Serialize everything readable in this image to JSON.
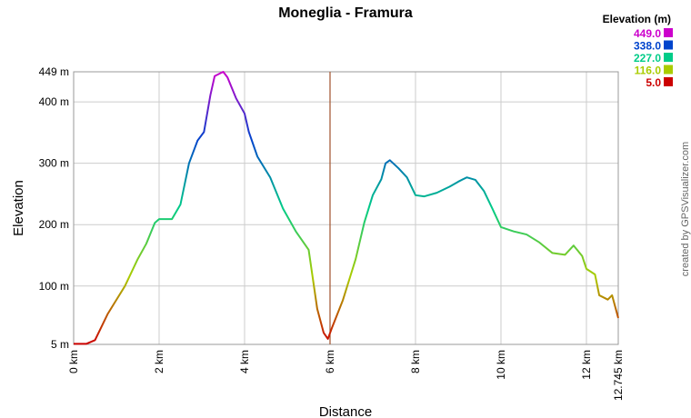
{
  "chart_data": {
    "type": "line",
    "title": "Moneglia - Framura",
    "x_label": "Distance",
    "y_label": "Elevation",
    "credit": "created by GPSVisualizer.com",
    "x": [
      0,
      0.3,
      0.5,
      0.8,
      1.2,
      1.5,
      1.7,
      1.9,
      2.0,
      2.3,
      2.5,
      2.7,
      2.9,
      3.05,
      3.2,
      3.3,
      3.5,
      3.6,
      3.8,
      4.0,
      4.1,
      4.3,
      4.6,
      4.9,
      5.2,
      5.5,
      5.7,
      5.85,
      5.95,
      6.05,
      6.3,
      6.6,
      6.8,
      7.0,
      7.2,
      7.3,
      7.4,
      7.6,
      7.8,
      8.0,
      8.2,
      8.5,
      8.8,
      9.0,
      9.2,
      9.4,
      9.6,
      9.8,
      10.0,
      10.3,
      10.6,
      10.9,
      11.2,
      11.5,
      11.7,
      11.9,
      12.0,
      12.2,
      12.3,
      12.5,
      12.6,
      12.745
    ],
    "values": [
      6,
      6,
      12,
      55,
      100,
      144,
      169,
      203,
      209,
      209,
      233,
      300,
      337,
      351,
      411,
      442,
      449,
      440,
      406,
      381,
      351,
      311,
      277,
      226,
      189,
      159,
      63,
      24,
      14,
      33,
      77,
      144,
      203,
      248,
      274,
      300,
      305,
      292,
      277,
      248,
      246,
      252,
      262,
      270,
      277,
      273,
      255,
      226,
      196,
      189,
      184,
      171,
      154,
      151,
      166,
      149,
      128,
      119,
      85,
      78,
      85,
      48
    ],
    "xlim": [
      0,
      12.745
    ],
    "xticks": [
      {
        "value": 0,
        "label": "0 km"
      },
      {
        "value": 2,
        "label": "2 km"
      },
      {
        "value": 4,
        "label": "4 km"
      },
      {
        "value": 6,
        "label": "6 km"
      },
      {
        "value": 8,
        "label": "8 km"
      },
      {
        "value": 10,
        "label": "10 km"
      },
      {
        "value": 12,
        "label": "12 km"
      },
      {
        "value": 12.745,
        "label": "12.745 km"
      }
    ],
    "ylim": [
      5,
      449
    ],
    "yticks": [
      {
        "value": 5,
        "label": "5 m"
      },
      {
        "value": 100,
        "label": "100 m"
      },
      {
        "value": 200,
        "label": "200 m"
      },
      {
        "value": 300,
        "label": "300 m"
      },
      {
        "value": 400,
        "label": "400 m"
      },
      {
        "value": 449,
        "label": "449 m"
      }
    ],
    "grid": true,
    "reference_lines": [
      {
        "x": 6.0,
        "color": "#a0522d"
      }
    ],
    "color_scale": {
      "title": "Elevation (m)",
      "stops": [
        {
          "value": 449,
          "label": "449.0",
          "color": "#cc00cc"
        },
        {
          "value": 338,
          "label": "338.0",
          "color": "#0044cc"
        },
        {
          "value": 227,
          "label": "227.0",
          "color": "#00cc88"
        },
        {
          "value": 116,
          "label": "116.0",
          "color": "#aacc00"
        },
        {
          "value": 5,
          "label": "5.0",
          "color": "#cc0000"
        }
      ]
    }
  }
}
